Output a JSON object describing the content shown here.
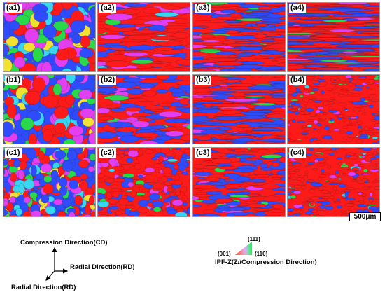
{
  "panels": [
    {
      "label": "(a1)",
      "row": 0,
      "col": 0,
      "style": "equiaxed"
    },
    {
      "label": "(a2)",
      "row": 0,
      "col": 1,
      "style": "elongated-red"
    },
    {
      "label": "(a3)",
      "row": 0,
      "col": 2,
      "style": "banded-fine"
    },
    {
      "label": "(a4)",
      "row": 0,
      "col": 3,
      "style": "banded-very-fine"
    },
    {
      "label": "(b1)",
      "row": 1,
      "col": 0,
      "style": "equiaxed"
    },
    {
      "label": "(b2)",
      "row": 1,
      "col": 1,
      "style": "elongated-blue"
    },
    {
      "label": "(b3)",
      "row": 1,
      "col": 2,
      "style": "banded-fine"
    },
    {
      "label": "(b4)",
      "row": 1,
      "col": 3,
      "style": "red-fine"
    },
    {
      "label": "(c1)",
      "row": 2,
      "col": 0,
      "style": "equiaxed-small"
    },
    {
      "label": "(c2)",
      "row": 2,
      "col": 1,
      "style": "mixed-red"
    },
    {
      "label": "(c3)",
      "row": 2,
      "col": 2,
      "style": "red-blue"
    },
    {
      "label": "(c4)",
      "row": 2,
      "col": 3,
      "style": "red-fine"
    }
  ],
  "scale_bar": "500μm",
  "axes": {
    "vertical": "Compression Direction(CD)",
    "horizontal": "Radial Direction(RD)",
    "diagonal": "Radial Direction(RD)"
  },
  "ipf_legend": {
    "title": "IPF-Z(Z//Compression Direction)",
    "corner_001": "(001)",
    "corner_111": "(111)",
    "corner_110": "(110)"
  },
  "colors": {
    "red": "#ff1a1a",
    "blue": "#2f4bff",
    "green": "#29d94a",
    "magenta": "#e23ff0",
    "cyan": "#36d6f2",
    "yellow": "#f2e12e"
  }
}
